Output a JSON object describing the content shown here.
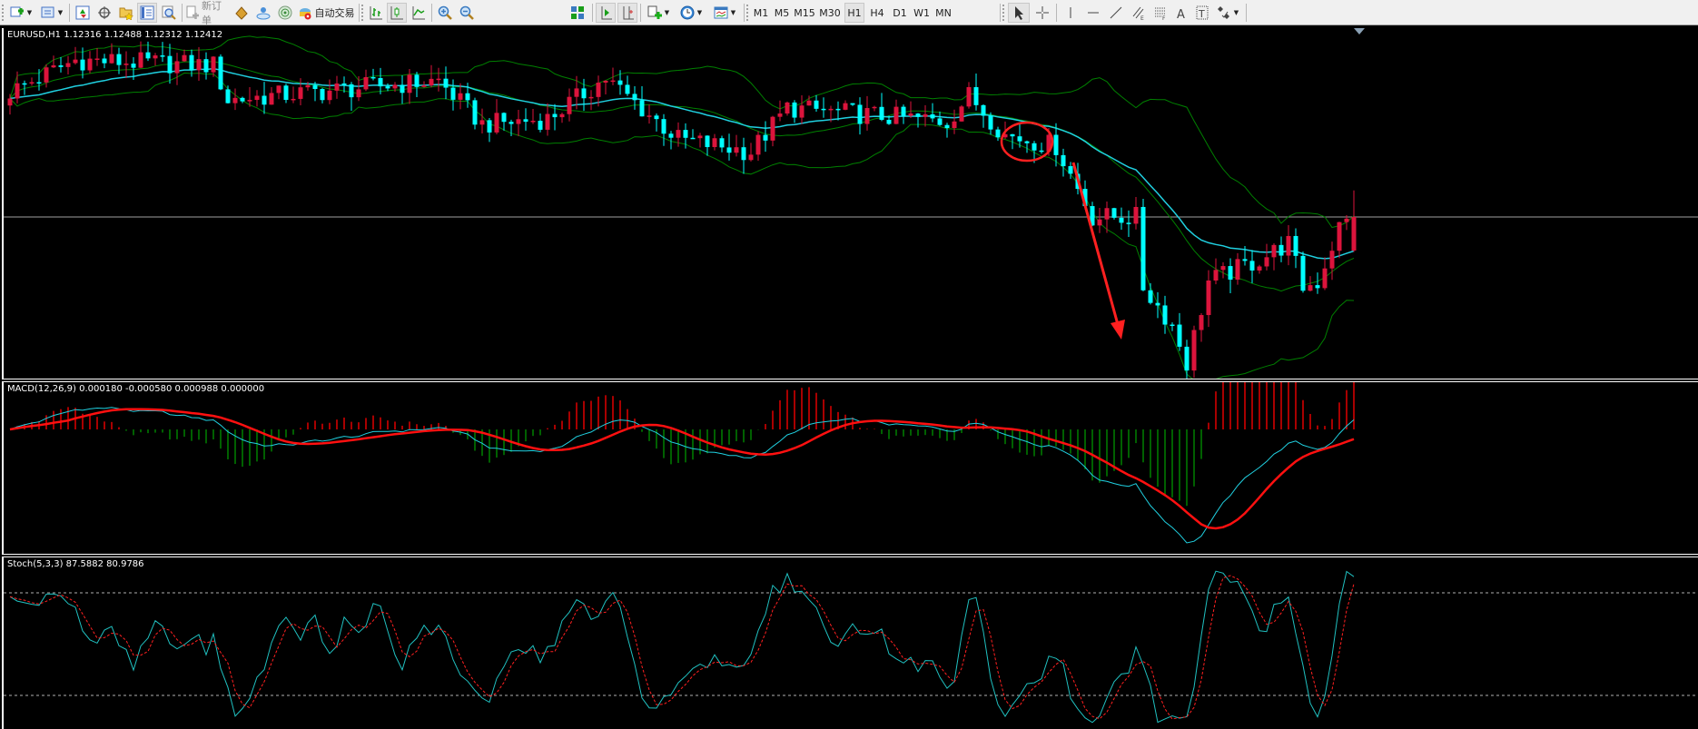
{
  "toolbar": {
    "new_order_label": "新订单",
    "auto_trading_label": "自动交易",
    "timeframes": [
      "M1",
      "M5",
      "M15",
      "M30",
      "H1",
      "H4",
      "D1",
      "W1",
      "MN"
    ],
    "active_timeframe": "H1"
  },
  "main_pane": {
    "label": "EURUSD,H1  1.12316 1.12488 1.12312 1.12412"
  },
  "macd_pane": {
    "label": "MACD(12,26,9) 0.000180 -0.000580 0.000988 0.000000"
  },
  "stoch_pane": {
    "label": "Stoch(5,3,3) 87.5882 80.9786"
  },
  "colors": {
    "bull": "#00ffff",
    "bear": "#dc143c",
    "bands": "#008000",
    "ma": "#20d0e0",
    "bid_line": "#a0a0a0",
    "macd_main": "#20d0e0",
    "macd_signal": "#ff1010",
    "hist_up": "#e00000",
    "hist_down": "#008000",
    "stoch_k": "#20c0c0",
    "stoch_d": "#ff2020",
    "annotation": "#ff2020"
  },
  "chart_data": {
    "type": "candlestick",
    "symbol": "EURUSD",
    "timeframe": "H1",
    "last_ohlc": {
      "open": 1.12316,
      "high": 1.12488,
      "low": 1.12312,
      "close": 1.12412
    },
    "candle_count": 186,
    "close_keypoints": [
      [
        0,
        1.1277
      ],
      [
        9,
        1.12861
      ],
      [
        28,
        1.12846
      ],
      [
        30,
        1.12747
      ],
      [
        59,
        1.12802
      ],
      [
        65,
        1.12677
      ],
      [
        74,
        1.12693
      ],
      [
        82,
        1.12809
      ],
      [
        92,
        1.12635
      ],
      [
        102,
        1.12599
      ],
      [
        107,
        1.12724
      ],
      [
        129,
        1.12685
      ],
      [
        132,
        1.1276
      ],
      [
        137,
        1.12646
      ],
      [
        144,
        1.12615
      ],
      [
        149,
        1.12412
      ],
      [
        155,
        1.12412
      ],
      [
        156,
        1.12212
      ],
      [
        160,
        1.12103
      ],
      [
        162,
        1.11994
      ],
      [
        165,
        1.12228
      ],
      [
        172,
        1.1229
      ],
      [
        176,
        1.12337
      ],
      [
        178,
        1.12212
      ],
      [
        180,
        1.12225
      ],
      [
        183,
        1.12383
      ],
      [
        185,
        1.12412
      ]
    ],
    "bollinger": {
      "period": 20,
      "deviation": 2
    },
    "ma_period": 30,
    "macd": {
      "fast": 12,
      "slow": 26,
      "signal": 9,
      "main": 0.00018,
      "signal_value": -0.00058,
      "hist": 0.000988
    },
    "stochastic": {
      "k": 5,
      "d": 3,
      "slowing": 3,
      "main": 87.5882,
      "signal": 80.9786,
      "levels": [
        80,
        20
      ]
    }
  }
}
